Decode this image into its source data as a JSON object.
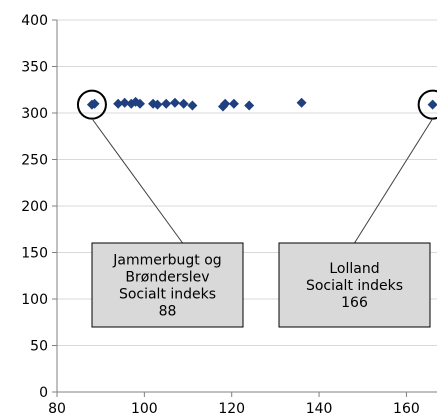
{
  "chart_data": {
    "type": "scatter",
    "xlim": [
      80,
      167
    ],
    "ylim": [
      0,
      400
    ],
    "x_ticks": [
      80,
      100,
      120,
      140,
      160
    ],
    "y_ticks": [
      0,
      50,
      100,
      150,
      200,
      250,
      300,
      350,
      400
    ],
    "grid": "horizontal",
    "marker_color": "#1f3f7f",
    "series": [
      {
        "points": [
          {
            "x": 88,
            "y": 309
          },
          {
            "x": 88.6,
            "y": 310
          },
          {
            "x": 94,
            "y": 310
          },
          {
            "x": 95.5,
            "y": 311
          },
          {
            "x": 97,
            "y": 310
          },
          {
            "x": 98,
            "y": 312
          },
          {
            "x": 99,
            "y": 310
          },
          {
            "x": 102,
            "y": 310
          },
          {
            "x": 103,
            "y": 309
          },
          {
            "x": 105,
            "y": 310
          },
          {
            "x": 107,
            "y": 311
          },
          {
            "x": 109,
            "y": 310
          },
          {
            "x": 111,
            "y": 308
          },
          {
            "x": 118,
            "y": 307
          },
          {
            "x": 118.5,
            "y": 310
          },
          {
            "x": 120.5,
            "y": 310
          },
          {
            "x": 124,
            "y": 308
          },
          {
            "x": 136,
            "y": 311
          },
          {
            "x": 166,
            "y": 309
          }
        ]
      }
    ],
    "annotations": [
      {
        "lines": [
          "Jammerbugt og",
          "Brønderslev",
          "Socialt indeks",
          "88"
        ],
        "target": {
          "x": 88,
          "y": 309
        }
      },
      {
        "lines": [
          "Lolland",
          "Socialt indeks",
          "166"
        ],
        "target": {
          "x": 166,
          "y": 309
        }
      }
    ]
  }
}
